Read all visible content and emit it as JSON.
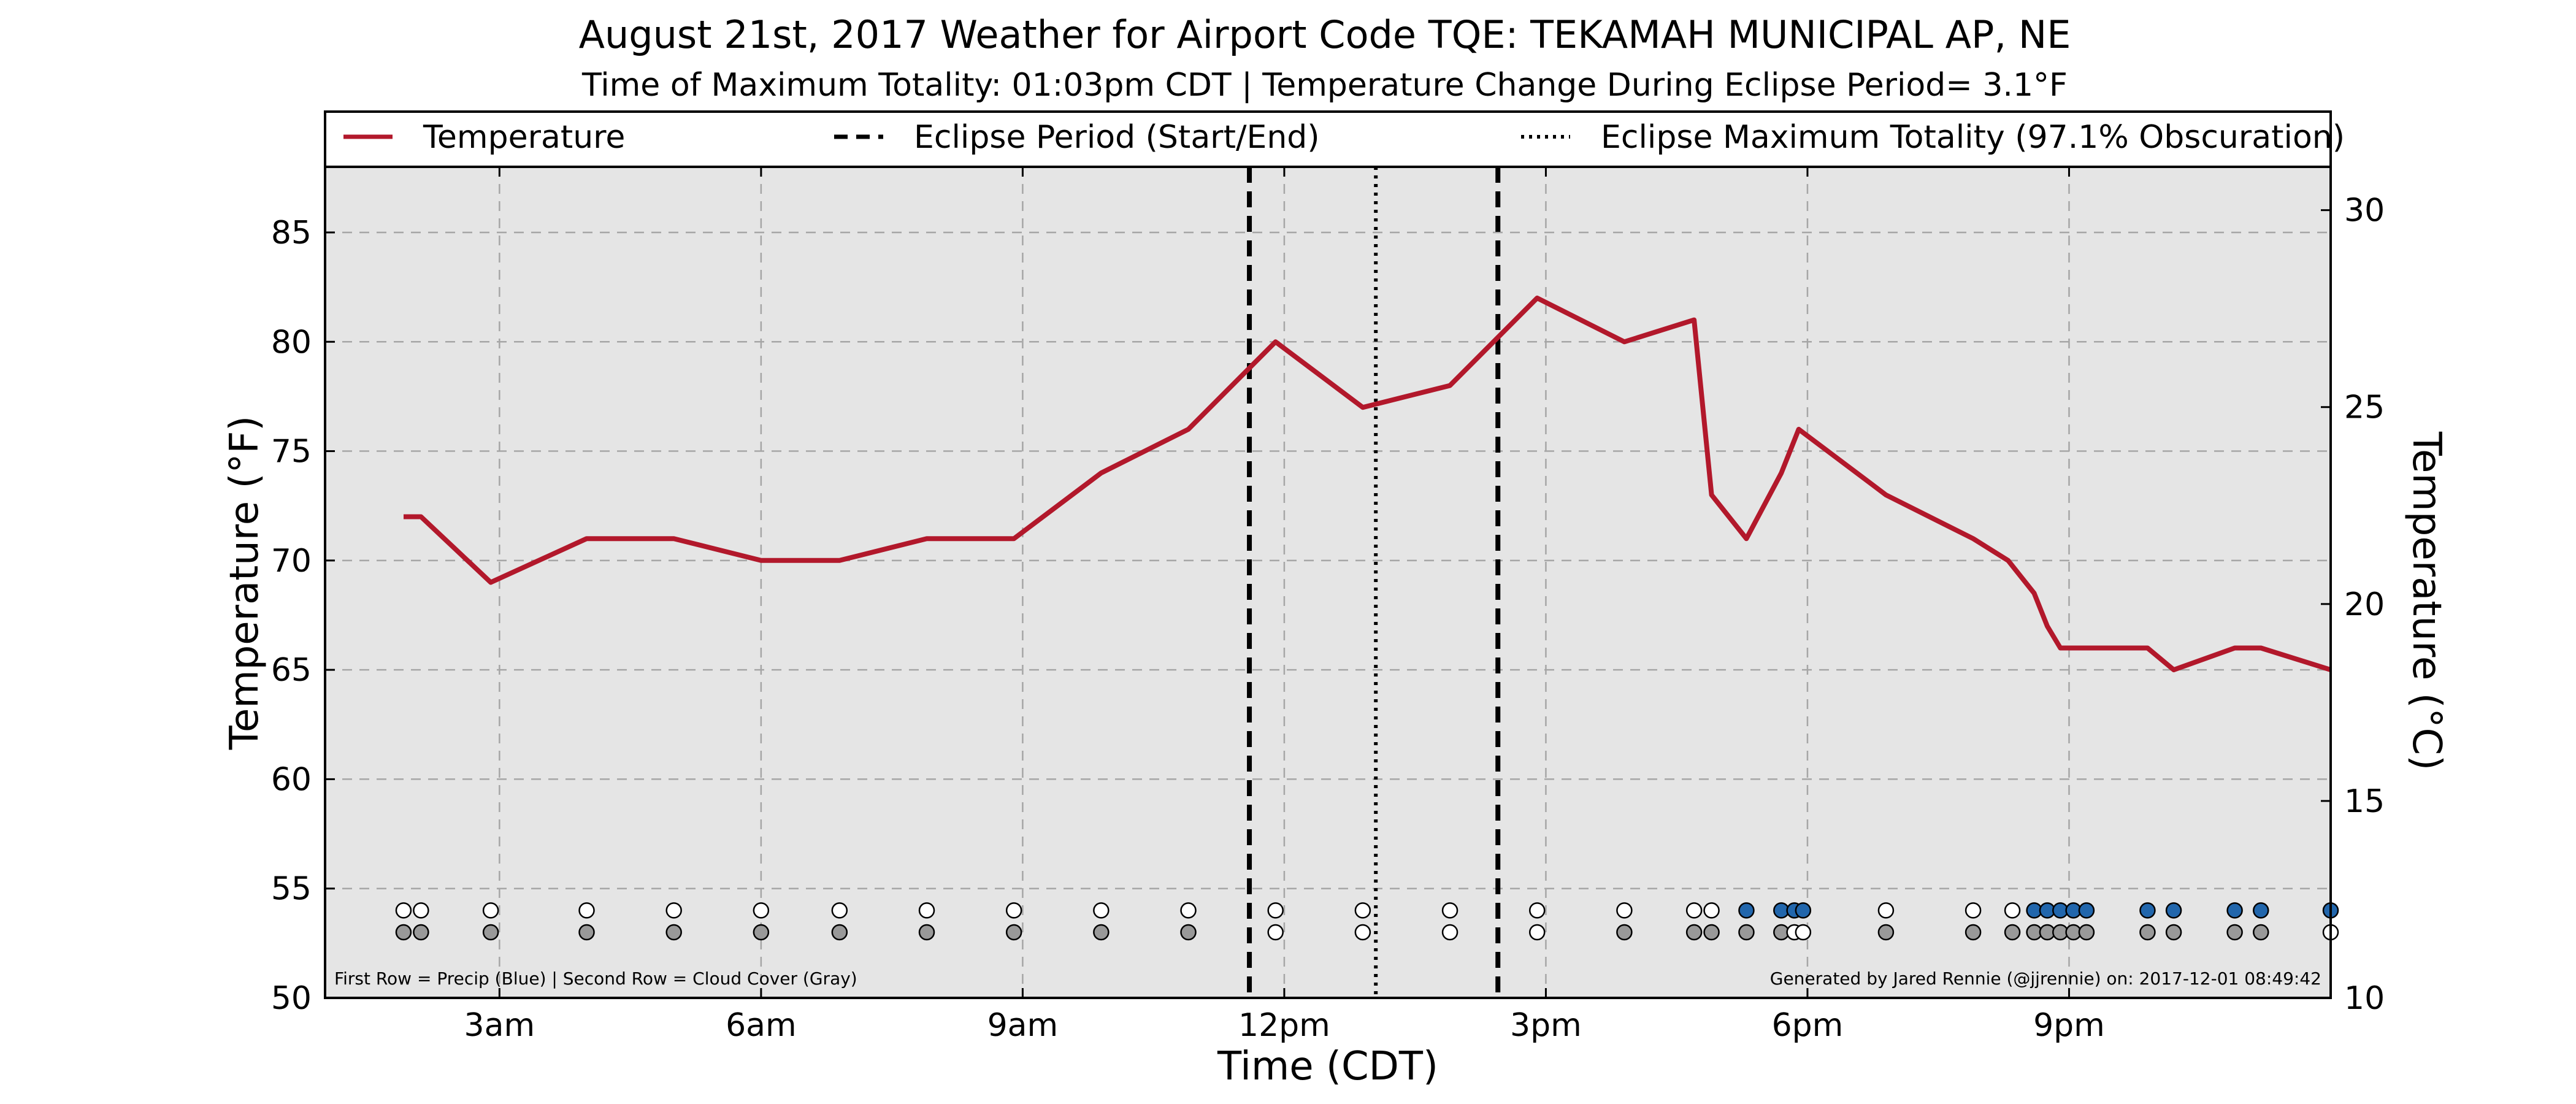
{
  "chart_data": {
    "type": "line",
    "title": "August 21st, 2017 Weather for Airport Code TQE: TEKAMAH MUNICIPAL AP, NE",
    "subtitle": "Time of Maximum Totality: 01:03pm CDT | Temperature Change During Eclipse Period= 3.1°F",
    "xlabel": "Time (CDT)",
    "ylabel": "Temperature (°F)",
    "ylabel_right": "Temperature (°C)",
    "xlim": [
      1.0,
      24.0
    ],
    "ylim": [
      50,
      88
    ],
    "ylim_right_c": [
      10,
      31.1
    ],
    "grid": true,
    "legend_position": "top",
    "x_ticks": [
      {
        "x": 3,
        "label": "3am"
      },
      {
        "x": 6,
        "label": "6am"
      },
      {
        "x": 9,
        "label": "9am"
      },
      {
        "x": 12,
        "label": "12pm"
      },
      {
        "x": 15,
        "label": "3pm"
      },
      {
        "x": 18,
        "label": "6pm"
      },
      {
        "x": 21,
        "label": "9pm"
      }
    ],
    "y_ticks": [
      50,
      55,
      60,
      65,
      70,
      75,
      80,
      85
    ],
    "y_ticks_right": [
      10,
      15,
      20,
      25,
      30
    ],
    "legend": [
      {
        "label": "Temperature",
        "style": "solid",
        "color": "#b2182b"
      },
      {
        "label": "Eclipse Period (Start/End)",
        "style": "dashed",
        "color": "#000000"
      },
      {
        "label": "Eclipse Maximum Totality (97.1% Obscuration)",
        "style": "dotted",
        "color": "#000000"
      }
    ],
    "eclipse_start": 11.6,
    "eclipse_max": 13.05,
    "eclipse_end": 14.45,
    "series": [
      {
        "name": "Temperature",
        "color": "#b2182b",
        "points": [
          [
            1.9,
            72
          ],
          [
            2.1,
            72
          ],
          [
            2.9,
            69
          ],
          [
            4.0,
            71
          ],
          [
            5.0,
            71
          ],
          [
            6.0,
            70
          ],
          [
            6.9,
            70
          ],
          [
            7.9,
            71
          ],
          [
            8.9,
            71
          ],
          [
            9.9,
            74
          ],
          [
            10.9,
            76
          ],
          [
            11.9,
            80
          ],
          [
            12.9,
            77
          ],
          [
            13.9,
            78
          ],
          [
            14.9,
            82
          ],
          [
            15.9,
            80
          ],
          [
            16.7,
            81
          ],
          [
            16.9,
            73
          ],
          [
            17.3,
            71
          ],
          [
            17.7,
            74
          ],
          [
            17.9,
            76
          ],
          [
            18.9,
            73
          ],
          [
            19.9,
            71
          ],
          [
            20.3,
            70
          ],
          [
            20.6,
            68.5
          ],
          [
            20.75,
            67
          ],
          [
            20.9,
            66
          ],
          [
            21.3,
            66
          ],
          [
            21.9,
            66
          ],
          [
            22.2,
            65
          ],
          [
            22.9,
            66
          ],
          [
            23.2,
            66
          ],
          [
            24.0,
            65
          ]
        ]
      }
    ],
    "observation_times": [
      1.9,
      2.1,
      2.9,
      4.0,
      5.0,
      6.0,
      6.9,
      7.9,
      8.9,
      9.9,
      10.9,
      11.9,
      12.9,
      13.9,
      14.9,
      15.9,
      16.7,
      16.9,
      17.3,
      17.7,
      17.85,
      17.95,
      18.9,
      19.9,
      20.35,
      20.6,
      20.75,
      20.9,
      21.05,
      21.2,
      21.9,
      22.2,
      22.9,
      23.2,
      24.0
    ],
    "precip_row": [
      "white",
      "white",
      "white",
      "white",
      "white",
      "white",
      "white",
      "white",
      "white",
      "white",
      "white",
      "white",
      "white",
      "white",
      "white",
      "white",
      "white",
      "white",
      "blue",
      "blue",
      "blue",
      "blue",
      "white",
      "white",
      "white",
      "blue",
      "blue",
      "blue",
      "blue",
      "blue",
      "blue",
      "blue",
      "blue",
      "blue",
      "blue"
    ],
    "cloud_row": [
      "gray",
      "gray",
      "gray",
      "gray",
      "gray",
      "gray",
      "gray",
      "gray",
      "gray",
      "gray",
      "gray",
      "white",
      "white",
      "white",
      "white",
      "gray",
      "gray",
      "gray",
      "gray",
      "gray",
      "white",
      "white",
      "gray",
      "gray",
      "gray",
      "gray",
      "gray",
      "gray",
      "gray",
      "gray",
      "gray",
      "gray",
      "gray",
      "gray",
      "white"
    ],
    "dot_colors": {
      "blue": "#2166ac",
      "gray": "#999999",
      "white": "#ffffff"
    },
    "footnote_left": "First Row = Precip (Blue) | Second Row = Cloud Cover (Gray)",
    "footnote_right": "Generated by Jared Rennie (@jjrennie) on: 2017-12-01 08:49:42"
  }
}
